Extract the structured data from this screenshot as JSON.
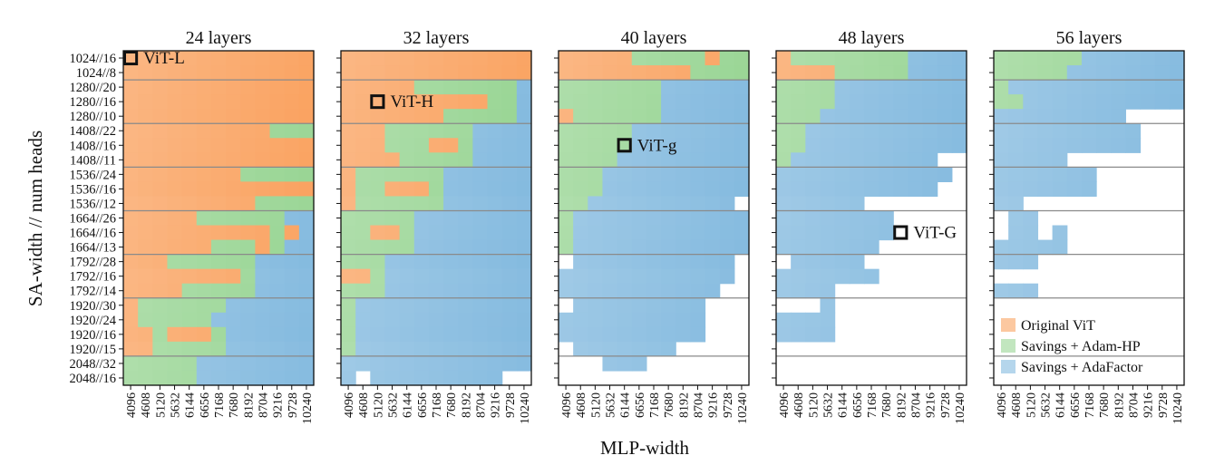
{
  "chart_data": {
    "type": "heatmap",
    "xlabel": "MLP-width",
    "ylabel": "SA-width // num heads",
    "x_ticks": [
      "4096",
      "4608",
      "5120",
      "5632",
      "6144",
      "6656",
      "7168",
      "7680",
      "8192",
      "8704",
      "9216",
      "9728",
      "10240"
    ],
    "y_ticks": [
      "1024//16",
      "1024//8",
      "1280//20",
      "1280//16",
      "1280//10",
      "1408//22",
      "1408//16",
      "1408//11",
      "1536//24",
      "1536//16",
      "1536//12",
      "1664//26",
      "1664//16",
      "1664//13",
      "1792//28",
      "1792//16",
      "1792//14",
      "1920//30",
      "1920//24",
      "1920//16",
      "1920//15",
      "2048//32",
      "2048//16"
    ],
    "group_separators_after_rows": [
      1,
      4,
      7,
      10,
      13,
      16,
      20
    ],
    "cell_legend": {
      "O": "Original ViT",
      "G": "Savings + Adam-HP",
      "B": "Savings + AdaFactor",
      ".": "none"
    },
    "colors": {
      "O": "#f99a52",
      "G": "#8fd18a",
      "B": "#79b4dc",
      "separator": "#8a8a8a"
    },
    "panels": [
      {
        "title": "24 layers",
        "grid": [
          "OOOOOOOOOOOOO",
          "OOOOOOOOOOOOO",
          "OOOOOOOOOOOOO",
          "OOOOOOOOOOOOO",
          "OOOOOOOOOOOOO",
          "OOOOOOOOOOGGG",
          "OOOOOOOOOOOOO",
          "OOOOOOOOOOOOO",
          "OOOOOOOOGGGGG",
          "OOOOOOOOOOOOO",
          "OOOOOOOOOGGGG",
          "OOOOOGGGGGGBB",
          "OOOOOOOOOOGOB",
          "OOOOOOGGGOGBB",
          "OOOGGGGGGBBBB",
          "OOOOOOOOGBBBB",
          "OOOOGGGGGBBBB",
          "OGGGGGGBBBBBB",
          "OGGGGGBBBBBBB",
          "OOGOOOGBBBBBB",
          "OOGGGGGBBBBBB",
          "GGGGGBBBBBBBB",
          "GGGGGBBBBBBBB"
        ],
        "annotation": {
          "label": "ViT-L",
          "row": 0,
          "col": 0
        }
      },
      {
        "title": "32 layers",
        "grid": [
          "OOOOOOOOOOOOO",
          "OOOOOOOOOOOOO",
          "OOOOOGGGGGGGB",
          "OOOOOOOOOOGGB",
          "OOOOOOOGGGGGB",
          "OOOGGGGGGBBBB",
          "OOOGGGOOGBBBB",
          "OOOOGGGGGBBBB",
          "OGGGGGGBBBBBB",
          "OGGOOOGBBBBBB",
          "OGGGGGGBBBBBB",
          "GGGGGBBBBBBBB",
          "GGOOGBBBBBBBB",
          "GGGGGBBBBBBBB",
          "GGGBBBBBBBBBB",
          "OOGBBBBBBBBBB",
          "GGGBBBBBBBBBB",
          "GBBBBBBBBBBBB",
          "GBBBBBBBBBBBB",
          "GBBBBBBBBBBBB",
          "GBBBBBBBBBBBB",
          "BBBBBBBBBBBBB",
          "B.BBBBBBBBB.."
        ],
        "annotation": {
          "label": "ViT-H",
          "row": 3,
          "col": 2
        }
      },
      {
        "title": "40 layers",
        "grid": [
          "OOOOOGGGGGOGG",
          "OOOOOOOOOGGGG",
          "GGGGGGGBBBBBB",
          "GGGGGGGBBBBBB",
          "OGGGGGGBBBBBB",
          "GGGGGBBBBBBBB",
          "GGGGGBBBBBBBB",
          "GGGGBBBBBBBBB",
          "GGGBBBBBBBBBB",
          "GGGBBBBBBBBBB",
          "GGBBBBBBBBBB.",
          "GBBBBBBBBBBBB",
          "GBBBBBBBBBBBB",
          "GBBBBBBBBBBBB",
          ".BBBBBBBBBBB.",
          "BBBBBBBBBBBB.",
          "BBBBBBBBBBB..",
          ".BBBBBBBBB...",
          "BBBBBBBBBB...",
          "BBBBBBBBBB...",
          ".BBBBBBB.....",
          "...BBB.......",
          "............."
        ],
        "annotation": {
          "label": "ViT-g",
          "row": 6,
          "col": 4
        }
      },
      {
        "title": "48 layers",
        "grid": [
          "OGGGGGGGGBBBB",
          "OOOOGGGGGBBBB",
          "GGGGBBBBBBBBB",
          "GGGGBBBBBBBBB",
          "GGGBBBBBBBBBB",
          "GGBBBBBBBBBBB",
          "GGBBBBBBBBBBB",
          "GBBBBBBBBBB..",
          "BBBBBBBBBBBB.",
          "BBBBBBBBBBB..",
          "BBBBBB.......",
          "BBBBBBBB.....",
          "BBBBBBBB.....",
          "BBBBBBB......",
          ".BBBBB.......",
          "BBBBBBB......",
          "BBBB.........",
          "...B.........",
          "BBBB.........",
          "BBBB.........",
          ".............",
          ".............",
          "............."
        ],
        "annotation": {
          "label": "ViT-G",
          "row": 12,
          "col": 8
        }
      },
      {
        "title": "56 layers",
        "grid": [
          "GGGGGGBBBBBBB",
          "GGGGGBBBBBBBB",
          "GBBBBBBBBBBBB",
          "GGBBBBBBBBBBB",
          "BBBBBBBBB....",
          "BBBBBBBBBB...",
          "BBBBBBBBBB...",
          "BBBBB........",
          "BBBBBBB......",
          "BBBBBBB......",
          "BB...........",
          ".BB..........",
          ".BB.B........",
          "BBBBB........",
          "BBB..........",
          ".............",
          "BBB..........",
          ".............",
          ".............",
          ".............",
          ".............",
          ".............",
          "............."
        ],
        "annotation": null
      }
    ],
    "legend": {
      "placement": "bottom-right of last panel",
      "entries": [
        {
          "label": "Original ViT",
          "key": "O"
        },
        {
          "label": "Savings + Adam-HP",
          "key": "G"
        },
        {
          "label": "Savings + AdaFactor",
          "key": "B"
        }
      ]
    }
  }
}
